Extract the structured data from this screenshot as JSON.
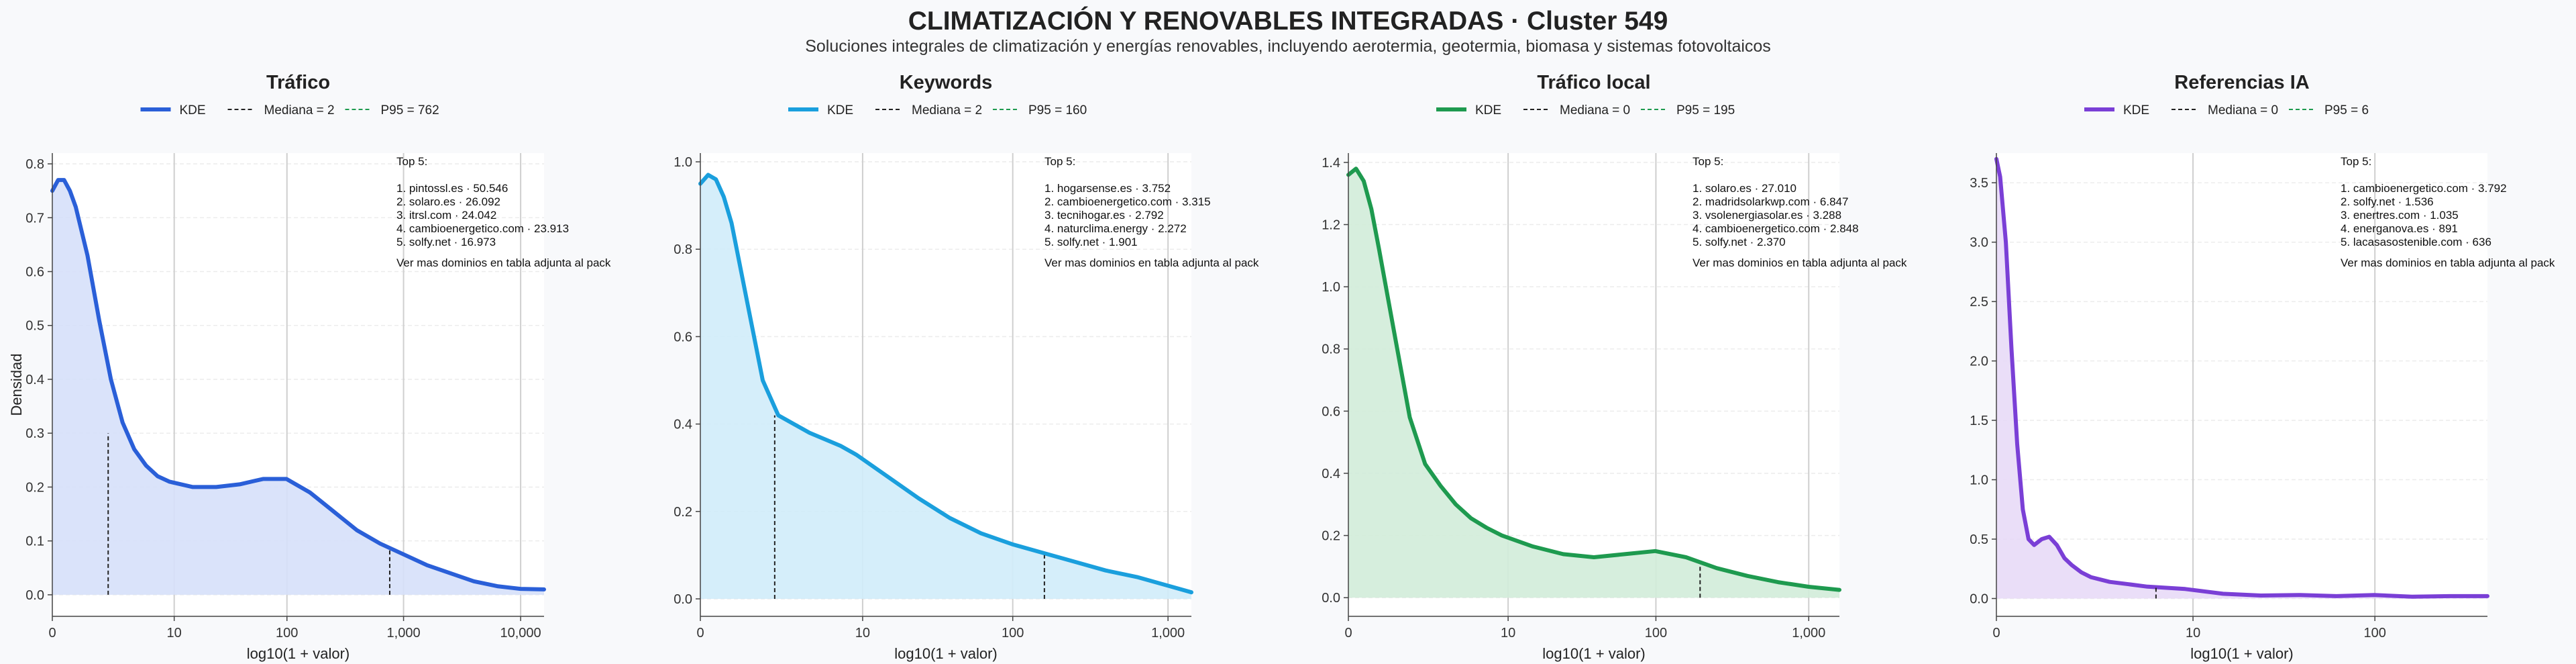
{
  "title": "CLIMATIZACIÓN Y RENOVABLES INTEGRADAS · Cluster 549",
  "subtitle": "Soluciones integrales de climatización y energías renovables, incluyendo aerotermia, geotermia, biomasa y sistemas fotovoltaicos",
  "chart_data": [
    {
      "type": "area",
      "title": "Tráfico",
      "xlabel": "log10(1 + valor)",
      "ylabel": "Densidad",
      "color": "#2a5fd8",
      "fill": "#d6e0fa",
      "xlim": [
        0,
        4.2
      ],
      "ylim": [
        -0.04,
        0.82
      ],
      "xticks": [
        {
          "v": 0,
          "label": "0"
        },
        {
          "v": 1.041,
          "label": "10"
        },
        {
          "v": 2.004,
          "label": "100"
        },
        {
          "v": 3.0,
          "label": "1,000"
        },
        {
          "v": 4.0,
          "label": "10,000"
        }
      ],
      "yticks": [
        {
          "v": 0,
          "label": "0.0"
        },
        {
          "v": 0.1,
          "label": "0.1"
        },
        {
          "v": 0.2,
          "label": "0.2"
        },
        {
          "v": 0.3,
          "label": "0.3"
        },
        {
          "v": 0.4,
          "label": "0.4"
        },
        {
          "v": 0.5,
          "label": "0.5"
        },
        {
          "v": 0.6,
          "label": "0.6"
        },
        {
          "v": 0.7,
          "label": "0.7"
        },
        {
          "v": 0.8,
          "label": "0.8"
        }
      ],
      "x": [
        0,
        0.05,
        0.1,
        0.15,
        0.2,
        0.3,
        0.4,
        0.5,
        0.6,
        0.7,
        0.8,
        0.9,
        1.0,
        1.2,
        1.4,
        1.6,
        1.8,
        2.0,
        2.2,
        2.4,
        2.6,
        2.8,
        3.0,
        3.2,
        3.4,
        3.6,
        3.8,
        4.0,
        4.2
      ],
      "y": [
        0.75,
        0.77,
        0.77,
        0.75,
        0.72,
        0.63,
        0.51,
        0.4,
        0.32,
        0.27,
        0.24,
        0.22,
        0.21,
        0.2,
        0.2,
        0.205,
        0.215,
        0.215,
        0.19,
        0.155,
        0.12,
        0.095,
        0.075,
        0.055,
        0.04,
        0.025,
        0.016,
        0.011,
        0.01
      ],
      "median": {
        "x": 0.477,
        "y": 0.3
      },
      "p95": {
        "x": 2.882,
        "y": 0.085
      },
      "legend": {
        "kde": "KDE",
        "median": "Mediana = 2",
        "p95": "P95 = 762"
      },
      "top_heading": "Top 5:",
      "top": [
        "1. pintossl.es · 50.546",
        "2. solaro.es · 26.092",
        "3. itrsl.com · 24.042",
        "4. cambioenergetico.com · 23.913",
        "5. solfy.net · 16.973"
      ],
      "footer": "Ver mas dominios en tabla adjunta al pack"
    },
    {
      "type": "area",
      "title": "Keywords",
      "xlabel": "log10(1 + valor)",
      "ylabel": "",
      "color": "#1a9fdd",
      "fill": "#d0ecfa",
      "xlim": [
        0,
        3.15
      ],
      "ylim": [
        -0.04,
        1.02
      ],
      "xticks": [
        {
          "v": 0,
          "label": "0"
        },
        {
          "v": 1.041,
          "label": "10"
        },
        {
          "v": 2.004,
          "label": "100"
        },
        {
          "v": 3.0,
          "label": "1,000"
        }
      ],
      "yticks": [
        {
          "v": 0,
          "label": "0.0"
        },
        {
          "v": 0.2,
          "label": "0.2"
        },
        {
          "v": 0.4,
          "label": "0.4"
        },
        {
          "v": 0.6,
          "label": "0.6"
        },
        {
          "v": 0.8,
          "label": "0.8"
        },
        {
          "v": 1.0,
          "label": "1.0"
        }
      ],
      "x": [
        0,
        0.05,
        0.1,
        0.15,
        0.2,
        0.3,
        0.4,
        0.5,
        0.6,
        0.7,
        0.8,
        0.9,
        1.0,
        1.2,
        1.4,
        1.6,
        1.8,
        2.0,
        2.2,
        2.4,
        2.6,
        2.8,
        3.0,
        3.15
      ],
      "y": [
        0.95,
        0.97,
        0.96,
        0.92,
        0.86,
        0.68,
        0.5,
        0.42,
        0.4,
        0.38,
        0.365,
        0.35,
        0.33,
        0.28,
        0.23,
        0.185,
        0.15,
        0.125,
        0.105,
        0.085,
        0.065,
        0.05,
        0.03,
        0.015
      ],
      "median": {
        "x": 0.477,
        "y": 0.42
      },
      "p95": {
        "x": 2.207,
        "y": 0.1
      },
      "legend": {
        "kde": "KDE",
        "median": "Mediana = 2",
        "p95": "P95 = 160"
      },
      "top_heading": "Top 5:",
      "top": [
        "1. hogarsense.es · 3.752",
        "2. cambioenergetico.com · 3.315",
        "3. tecnihogar.es · 2.792",
        "4. naturclima.energy · 2.272",
        "5. solfy.net · 1.901"
      ],
      "footer": "Ver mas dominios en tabla adjunta al pack"
    },
    {
      "type": "area",
      "title": "Tráfico local",
      "xlabel": "log10(1 + valor)",
      "ylabel": "",
      "color": "#1e9a4f",
      "fill": "#d2ecd9",
      "xlim": [
        0,
        3.2
      ],
      "ylim": [
        -0.06,
        1.43
      ],
      "xticks": [
        {
          "v": 0,
          "label": "0"
        },
        {
          "v": 1.041,
          "label": "10"
        },
        {
          "v": 2.004,
          "label": "100"
        },
        {
          "v": 3.0,
          "label": "1,000"
        }
      ],
      "yticks": [
        {
          "v": 0,
          "label": "0.0"
        },
        {
          "v": 0.2,
          "label": "0.2"
        },
        {
          "v": 0.4,
          "label": "0.4"
        },
        {
          "v": 0.6,
          "label": "0.6"
        },
        {
          "v": 0.8,
          "label": "0.8"
        },
        {
          "v": 1.0,
          "label": "1.0"
        },
        {
          "v": 1.2,
          "label": "1.2"
        },
        {
          "v": 1.4,
          "label": "1.4"
        }
      ],
      "x": [
        0,
        0.05,
        0.1,
        0.15,
        0.2,
        0.3,
        0.4,
        0.5,
        0.6,
        0.7,
        0.8,
        0.9,
        1.0,
        1.2,
        1.4,
        1.6,
        1.8,
        2.0,
        2.2,
        2.4,
        2.6,
        2.8,
        3.0,
        3.2
      ],
      "y": [
        1.36,
        1.38,
        1.34,
        1.25,
        1.12,
        0.85,
        0.58,
        0.43,
        0.36,
        0.3,
        0.255,
        0.225,
        0.2,
        0.165,
        0.14,
        0.13,
        0.14,
        0.15,
        0.13,
        0.095,
        0.07,
        0.05,
        0.035,
        0.025
      ],
      "median": null,
      "p95": {
        "x": 2.292,
        "y": 0.1
      },
      "legend": {
        "kde": "KDE",
        "median": "Mediana = 0",
        "p95": "P95 = 195"
      },
      "top_heading": "Top 5:",
      "top": [
        "1. solaro.es · 27.010",
        "2. madridsolarkwp.com · 6.847",
        "3. vsolenergiasolar.es · 3.288",
        "4. cambioenergetico.com · 2.848",
        "5. solfy.net · 2.370"
      ],
      "footer": "Ver mas dominios en tabla adjunta al pack"
    },
    {
      "type": "area",
      "title": "Referencias IA",
      "xlabel": "log10(1 + valor)",
      "ylabel": "",
      "color": "#7a3fd6",
      "fill": "#e8daf7",
      "xlim": [
        0,
        2.6
      ],
      "ylim": [
        -0.15,
        3.75
      ],
      "xticks": [
        {
          "v": 0,
          "label": "0"
        },
        {
          "v": 1.041,
          "label": "10"
        },
        {
          "v": 2.004,
          "label": "100"
        }
      ],
      "yticks": [
        {
          "v": 0,
          "label": "0.0"
        },
        {
          "v": 0.5,
          "label": "0.5"
        },
        {
          "v": 1.0,
          "label": "1.0"
        },
        {
          "v": 1.5,
          "label": "1.5"
        },
        {
          "v": 2.0,
          "label": "2.0"
        },
        {
          "v": 2.5,
          "label": "2.5"
        },
        {
          "v": 3.0,
          "label": "3.0"
        },
        {
          "v": 3.5,
          "label": "3.5"
        }
      ],
      "x": [
        0,
        0.02,
        0.05,
        0.08,
        0.11,
        0.14,
        0.17,
        0.2,
        0.24,
        0.28,
        0.32,
        0.36,
        0.4,
        0.45,
        0.5,
        0.6,
        0.7,
        0.8,
        1.0,
        1.2,
        1.4,
        1.6,
        1.8,
        2.0,
        2.2,
        2.4,
        2.6
      ],
      "y": [
        3.7,
        3.55,
        3.0,
        2.1,
        1.3,
        0.75,
        0.5,
        0.45,
        0.5,
        0.52,
        0.45,
        0.34,
        0.28,
        0.22,
        0.18,
        0.14,
        0.12,
        0.1,
        0.08,
        0.04,
        0.025,
        0.03,
        0.02,
        0.03,
        0.015,
        0.02,
        0.02
      ],
      "median": null,
      "p95": {
        "x": 0.845,
        "y": 0.09
      },
      "legend": {
        "kde": "KDE",
        "median": "Mediana = 0",
        "p95": "P95 = 6"
      },
      "top_heading": "Top 5:",
      "top": [
        "1. cambioenergetico.com · 3.792",
        "2. solfy.net · 1.536",
        "3. enertres.com · 1.035",
        "4. energanova.es · 891",
        "5. lacasasostenible.com · 636"
      ],
      "footer": "Ver mas dominios en tabla adjunta al pack"
    }
  ]
}
